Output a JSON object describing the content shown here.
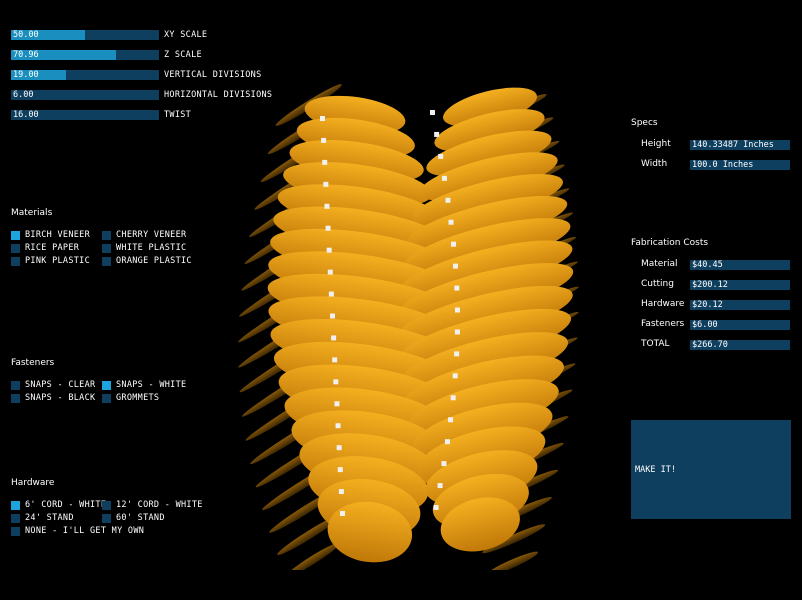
{
  "sliders": [
    {
      "value": "50.00",
      "label": "XY SCALE",
      "fraction": 0.5
    },
    {
      "value": "70.96",
      "label": "Z SCALE",
      "fraction": 0.71
    },
    {
      "value": "19.00",
      "label": "VERTICAL DIVISIONS",
      "fraction": 0.37
    },
    {
      "value": "6.00",
      "label": "HORIZONTAL DIVISIONS",
      "fraction": 0.0
    },
    {
      "value": "16.00",
      "label": "TWIST",
      "fraction": 0.0
    }
  ],
  "materials": {
    "title": "Materials",
    "options": [
      {
        "label": "BIRCH VENEER",
        "selected": true
      },
      {
        "label": "CHERRY VENEER",
        "selected": false
      },
      {
        "label": "RICE PAPER",
        "selected": false
      },
      {
        "label": "WHITE PLASTIC",
        "selected": false
      },
      {
        "label": "PINK PLASTIC",
        "selected": false
      },
      {
        "label": "ORANGE PLASTIC",
        "selected": false
      }
    ]
  },
  "fasteners": {
    "title": "Fasteners",
    "options": [
      {
        "label": "SNAPS - CLEAR",
        "selected": false
      },
      {
        "label": "SNAPS - WHITE",
        "selected": true
      },
      {
        "label": "SNAPS - BLACK",
        "selected": false
      },
      {
        "label": "GROMMETS",
        "selected": false
      }
    ]
  },
  "hardware": {
    "title": "Hardware",
    "options": [
      {
        "label": "6' CORD - WHITE",
        "selected": true
      },
      {
        "label": "12' CORD - WHITE",
        "selected": false
      },
      {
        "label": "24' STAND",
        "selected": false
      },
      {
        "label": "60' STAND",
        "selected": false
      },
      {
        "label": "NONE - I'LL GET MY OWN",
        "selected": false
      }
    ]
  },
  "specs": {
    "title": "Specs",
    "height_label": "Height",
    "height_value": "140.33487 Inches",
    "width_label": "Width",
    "width_value": "100.0 Inches"
  },
  "costs": {
    "title": "Fabrication Costs",
    "rows": [
      {
        "label": "Material",
        "value": "$40.45"
      },
      {
        "label": "Cutting",
        "value": "$200.12"
      },
      {
        "label": "Hardware",
        "value": "$20.12"
      },
      {
        "label": "Fasteners",
        "value": "$6.00"
      },
      {
        "label": "TOTAL",
        "value": "$266.70"
      }
    ]
  },
  "make_it_label": "MAKE IT!",
  "colors": {
    "panel": "#0f3f5f",
    "accent": "#1ea4dc",
    "leaf": "#e8a014",
    "background": "#000000"
  }
}
